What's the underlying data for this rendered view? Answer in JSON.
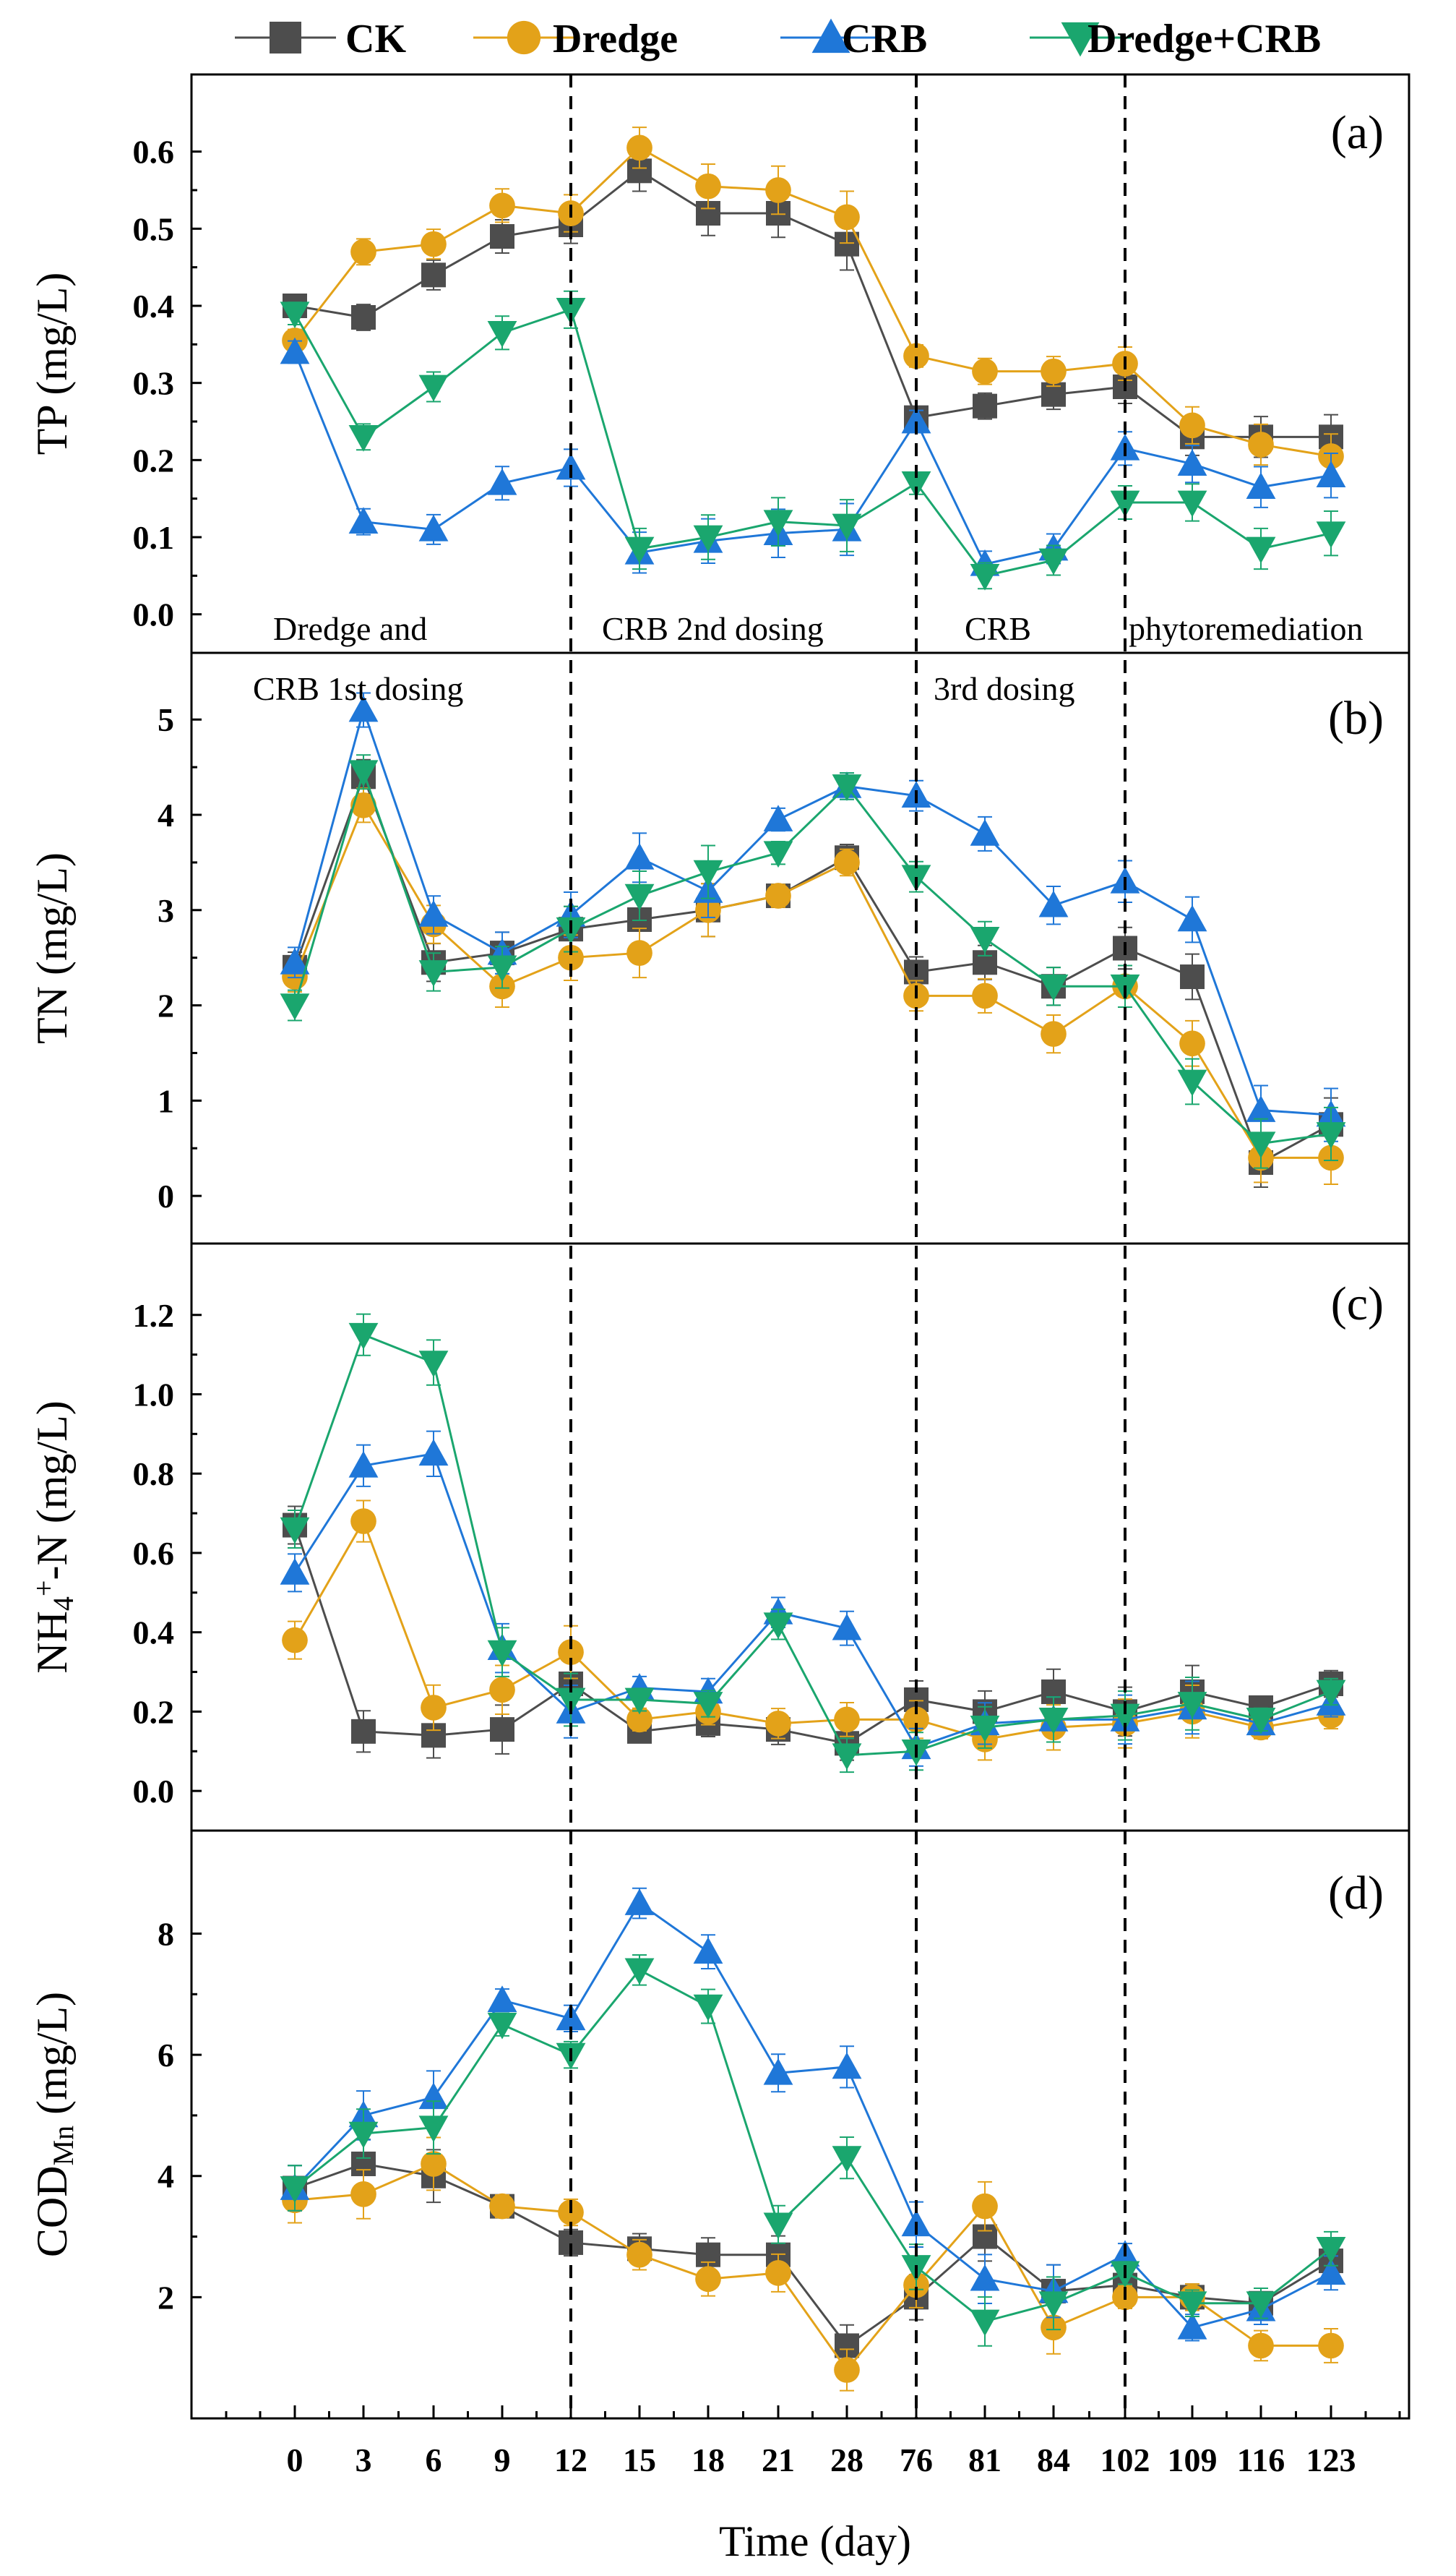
{
  "chart_data": {
    "type": "line",
    "title": "",
    "xlabel": "Time (day)",
    "x": [
      "0",
      "3",
      "6",
      "9",
      "12",
      "15",
      "18",
      "21",
      "28",
      "76",
      "81",
      "84",
      "102",
      "109",
      "116",
      "123"
    ],
    "legend": {
      "position": "top",
      "entries": [
        "CK",
        "Dredge",
        "CRB",
        "Dredge+CRB"
      ]
    },
    "series_styles": [
      {
        "name": "CK",
        "color": "#4d4d4d",
        "marker": "square"
      },
      {
        "name": "Dredge",
        "color": "#e3a219",
        "marker": "circle"
      },
      {
        "name": "CRB",
        "color": "#1f77d8",
        "marker": "triangle-up"
      },
      {
        "name": "Dredge+CRB",
        "color": "#1aa66e",
        "marker": "triangle-down"
      }
    ],
    "dosing_lines_at": [
      "12",
      "76",
      "102"
    ],
    "phase_labels": [
      {
        "text": "Dredge and",
        "panel": "a"
      },
      {
        "text": "CRB 1st dosing",
        "panel": "b"
      },
      {
        "text": "CRB 2nd dosing",
        "panel": "a"
      },
      {
        "text": "CRB",
        "panel": "a"
      },
      {
        "text": "3rd dosing",
        "panel": "b"
      },
      {
        "text": "phytoremediation",
        "panel": "a"
      }
    ],
    "panels": [
      {
        "tag": "(a)",
        "ylabel": "TP (mg/L)",
        "ylim": [
          -0.05,
          0.7
        ],
        "yticks": [
          "0.0",
          "0.1",
          "0.2",
          "0.3",
          "0.4",
          "0.5",
          "0.6"
        ],
        "series": [
          {
            "name": "CK",
            "values": [
              0.4,
              0.385,
              0.44,
              0.49,
              0.505,
              0.575,
              0.52,
              0.52,
              0.48,
              0.255,
              0.27,
              0.285,
              0.295,
              0.23,
              0.23,
              0.23
            ]
          },
          {
            "name": "Dredge",
            "values": [
              0.355,
              0.47,
              0.48,
              0.53,
              0.52,
              0.605,
              0.555,
              0.55,
              0.515,
              0.335,
              0.315,
              0.315,
              0.325,
              0.245,
              0.22,
              0.205
            ]
          },
          {
            "name": "CRB",
            "values": [
              0.34,
              0.12,
              0.11,
              0.17,
              0.19,
              0.08,
              0.095,
              0.105,
              0.11,
              0.25,
              0.065,
              0.085,
              0.215,
              0.195,
              0.165,
              0.18
            ]
          },
          {
            "name": "Dredge+CRB",
            "values": [
              0.39,
              0.23,
              0.295,
              0.365,
              0.395,
              0.085,
              0.1,
              0.12,
              0.115,
              0.17,
              0.05,
              0.07,
              0.145,
              0.145,
              0.085,
              0.105
            ]
          }
        ]
      },
      {
        "tag": "(b)",
        "ylabel": "TN (mg/L)",
        "ylim": [
          -0.5,
          5.7
        ],
        "yticks": [
          "0",
          "1",
          "2",
          "3",
          "4",
          "5"
        ],
        "series": [
          {
            "name": "CK",
            "values": [
              2.4,
              4.4,
              2.45,
              2.55,
              2.8,
              2.9,
              3.0,
              3.15,
              3.55,
              2.35,
              2.45,
              2.2,
              2.6,
              2.3,
              0.35,
              0.75
            ]
          },
          {
            "name": "Dredge",
            "values": [
              2.3,
              4.1,
              2.85,
              2.2,
              2.5,
              2.55,
              3.0,
              3.15,
              3.5,
              2.1,
              2.1,
              1.7,
              2.2,
              1.6,
              0.4,
              0.4
            ]
          },
          {
            "name": "CRB",
            "values": [
              2.45,
              5.1,
              2.95,
              2.55,
              2.95,
              3.55,
              3.2,
              3.95,
              4.3,
              4.2,
              3.8,
              3.05,
              3.3,
              2.9,
              0.9,
              0.85
            ]
          },
          {
            "name": "Dredge+CRB",
            "values": [
              2.0,
              4.45,
              2.35,
              2.4,
              2.8,
              3.15,
              3.4,
              3.6,
              4.3,
              3.35,
              2.7,
              2.2,
              2.2,
              1.2,
              0.55,
              0.65
            ]
          }
        ]
      },
      {
        "tag": "(c)",
        "ylabel": "NH4+-N (mg/L)",
        "ylim": [
          -0.1,
          1.38
        ],
        "yticks": [
          "0.0",
          "0.2",
          "0.4",
          "0.6",
          "0.8",
          "1.0",
          "1.2"
        ],
        "series": [
          {
            "name": "CK",
            "values": [
              0.67,
              0.15,
              0.14,
              0.155,
              0.27,
              0.15,
              0.17,
              0.155,
              0.12,
              0.23,
              0.2,
              0.25,
              0.2,
              0.25,
              0.21,
              0.27
            ]
          },
          {
            "name": "Dredge",
            "values": [
              0.38,
              0.68,
              0.21,
              0.255,
              0.35,
              0.18,
              0.2,
              0.17,
              0.18,
              0.18,
              0.13,
              0.16,
              0.17,
              0.2,
              0.16,
              0.19
            ]
          },
          {
            "name": "CRB",
            "values": [
              0.55,
              0.82,
              0.85,
              0.36,
              0.2,
              0.26,
              0.25,
              0.45,
              0.41,
              0.11,
              0.17,
              0.18,
              0.18,
              0.21,
              0.17,
              0.22
            ]
          },
          {
            "name": "Dredge+CRB",
            "values": [
              0.66,
              1.15,
              1.08,
              0.35,
              0.23,
              0.23,
              0.22,
              0.42,
              0.09,
              0.1,
              0.16,
              0.18,
              0.19,
              0.22,
              0.18,
              0.25
            ]
          }
        ]
      },
      {
        "tag": "(d)",
        "ylabel": "CODMn (mg/L)",
        "ylim": [
          0.0,
          9.7
        ],
        "yticks": [
          "2",
          "4",
          "6",
          "8"
        ],
        "series": [
          {
            "name": "CK",
            "values": [
              3.8,
              4.2,
              4.0,
              3.5,
              2.9,
              2.8,
              2.7,
              2.7,
              1.2,
              2.0,
              3.0,
              2.1,
              2.2,
              2.0,
              1.9,
              2.6
            ]
          },
          {
            "name": "Dredge",
            "values": [
              3.6,
              3.7,
              4.2,
              3.5,
              3.4,
              2.7,
              2.3,
              2.4,
              0.8,
              2.2,
              3.5,
              1.5,
              2.0,
              2.0,
              1.2,
              1.2
            ]
          },
          {
            "name": "CRB",
            "values": [
              3.8,
              5.0,
              5.3,
              6.9,
              6.6,
              8.5,
              7.7,
              5.7,
              5.8,
              3.2,
              2.3,
              2.1,
              2.7,
              1.5,
              1.8,
              2.4
            ]
          },
          {
            "name": "Dredge+CRB",
            "values": [
              3.8,
              4.7,
              4.8,
              6.5,
              6.0,
              7.4,
              6.8,
              3.2,
              4.3,
              2.5,
              1.6,
              1.9,
              2.4,
              1.9,
              1.9,
              2.8
            ]
          }
        ]
      }
    ]
  }
}
